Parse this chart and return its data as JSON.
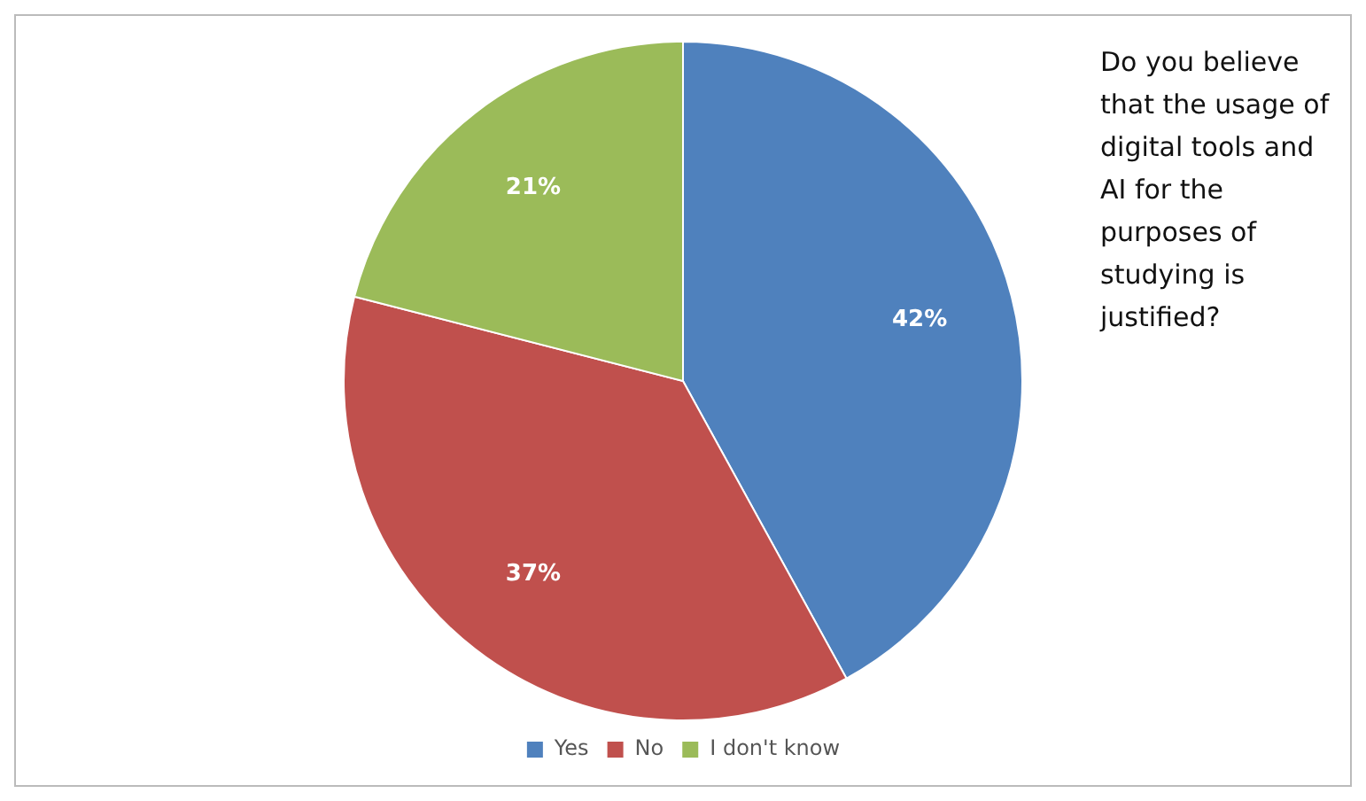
{
  "chart_data": {
    "type": "pie",
    "title": "Do you believe that the usage of digital tools and AI for the purposes of studying is justified?",
    "categories": [
      "Yes",
      "No",
      "I don't know"
    ],
    "values": [
      42,
      37,
      21
    ],
    "colors": [
      "#4f81bd",
      "#c0504d",
      "#9bbb59"
    ],
    "value_labels": [
      "42%",
      "37%",
      "21%"
    ],
    "legend": "bottom"
  }
}
